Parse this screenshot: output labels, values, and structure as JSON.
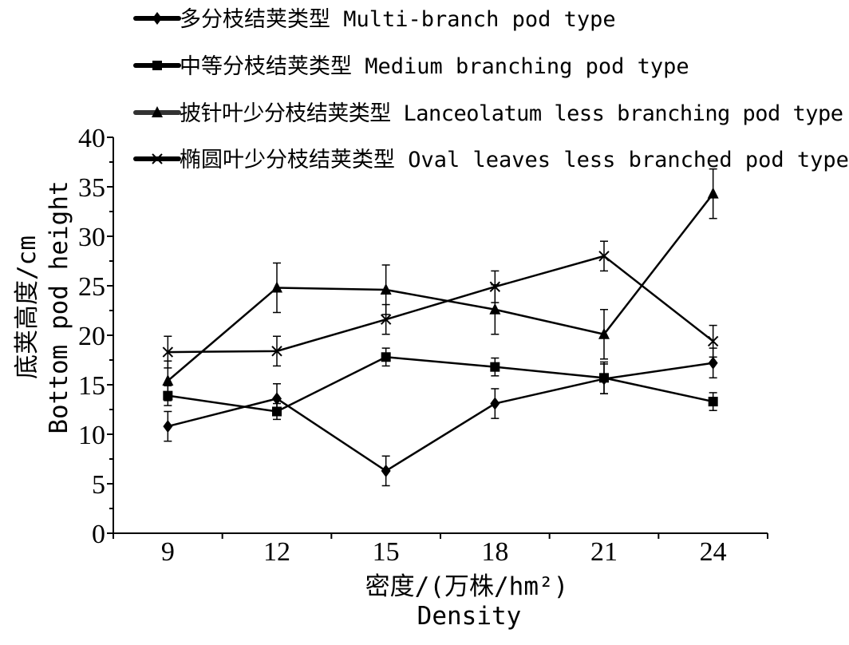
{
  "chart_data": {
    "type": "line",
    "x": [
      9,
      12,
      15,
      18,
      21,
      24
    ],
    "xlabel": [
      "密度/(万株/hm²)",
      "Density"
    ],
    "ylabel": [
      "底荚高度/cm",
      "Bottom pod height"
    ],
    "ylim": [
      0,
      40
    ],
    "yticks": [
      0,
      5,
      10,
      15,
      20,
      25,
      30,
      35,
      40
    ],
    "grid": false,
    "legend_position": "top",
    "series": [
      {
        "name": "多分枝结荚类型 Multi-branch pod type",
        "marker": "diamond",
        "values": [
          10.8,
          13.6,
          6.3,
          13.1,
          15.6,
          17.2
        ],
        "errors": [
          1.5,
          1.5,
          1.5,
          1.5,
          1.5,
          1.5
        ]
      },
      {
        "name": "中等分枝结荚类型 Medium branching pod type",
        "marker": "square",
        "values": [
          13.9,
          12.3,
          17.8,
          16.8,
          15.7,
          13.3
        ],
        "errors": [
          1.0,
          0.8,
          0.9,
          0.9,
          1.6,
          0.9
        ]
      },
      {
        "name": "披针叶少分枝结荚类型 Lanceolatum less branching pod type",
        "marker": "triangle",
        "values": [
          15.4,
          24.8,
          24.6,
          22.6,
          20.1,
          34.3
        ],
        "errors": [
          2.0,
          2.5,
          2.5,
          2.5,
          2.5,
          2.5
        ]
      },
      {
        "name": "椭圆叶少分枝结荚类型 Oval leaves less branched pod type",
        "marker": "x",
        "values": [
          18.3,
          18.4,
          21.6,
          24.9,
          28.0,
          19.4
        ],
        "errors": [
          1.6,
          1.5,
          1.5,
          1.6,
          1.5,
          1.6
        ]
      }
    ]
  }
}
